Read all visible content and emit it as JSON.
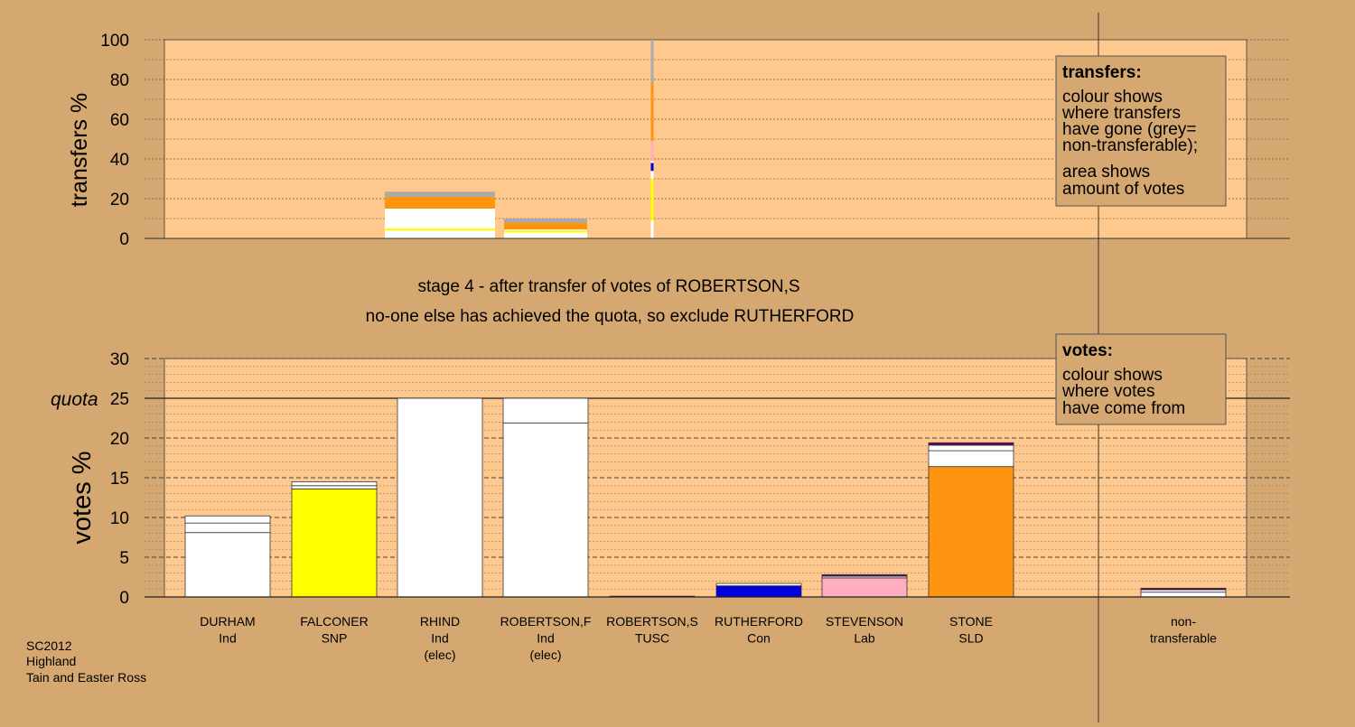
{
  "colors": {
    "background": "#d4a870",
    "plot_bg": "#ffc98e",
    "ind": "#ffffff",
    "snp": "#ffff00",
    "con": "#0000dd",
    "lab": "#ffadc0",
    "sld": "#ff9410",
    "tusc": "#660066",
    "nontransferable": "#aaaaaa"
  },
  "footer": {
    "line1": "SC2012",
    "line2": "Highland",
    "line3": "Tain and Easter Ross"
  },
  "legend_transfers": {
    "title": "transfers:",
    "lines": [
      "colour shows",
      "where transfers",
      "have gone (grey=",
      "non-transferable);",
      "area shows",
      "amount of votes"
    ]
  },
  "legend_votes": {
    "title": "votes:",
    "lines": [
      "colour shows",
      "where votes",
      "have come from"
    ]
  },
  "stage_text": {
    "line1": "stage 4 - after transfer of votes of ROBERTSON,S",
    "line2": "no-one else has achieved the quota, so exclude RUTHERFORD"
  },
  "chart_data": [
    {
      "type": "bar",
      "ylabel": "transfers %",
      "ylim": [
        0,
        100
      ],
      "yticks": [
        0,
        20,
        40,
        60,
        80,
        100
      ],
      "grid": true,
      "categories": [
        "RHIND",
        "ROBERTSON,F",
        "ROBERTSON,S"
      ],
      "bars": [
        {
          "category": "RHIND",
          "segments": [
            {
              "color": "ind",
              "value": 4
            },
            {
              "color": "snp",
              "value": 1
            },
            {
              "color": "ind",
              "value": 10
            },
            {
              "color": "sld",
              "value": 6
            },
            {
              "color": "nontransferable",
              "value": 2.5
            }
          ]
        },
        {
          "category": "ROBERTSON,F",
          "segments": [
            {
              "color": "ind",
              "value": 3
            },
            {
              "color": "snp",
              "value": 1
            },
            {
              "color": "ind",
              "value": 0.5
            },
            {
              "color": "sld",
              "value": 3.5
            },
            {
              "color": "nontransferable",
              "value": 2
            }
          ]
        },
        {
          "category": "ROBERTSON,S",
          "segments": [
            {
              "color": "ind",
              "value": 9
            },
            {
              "color": "snp",
              "value": 21
            },
            {
              "color": "ind",
              "value": 4
            },
            {
              "color": "con",
              "value": 4
            },
            {
              "color": "ind",
              "value": 1
            },
            {
              "color": "lab",
              "value": 10
            },
            {
              "color": "sld",
              "value": 29
            },
            {
              "color": "nontransferable",
              "value": 22
            }
          ]
        }
      ]
    },
    {
      "type": "bar",
      "ylabel": "votes %",
      "ylim": [
        0,
        30
      ],
      "yticks": [
        0,
        5,
        10,
        15,
        20,
        25,
        30
      ],
      "quota": {
        "label": "quota",
        "value": 25
      },
      "grid": true,
      "categories": [
        {
          "name": "DURHAM",
          "party": "Ind",
          "note": ""
        },
        {
          "name": "FALCONER",
          "party": "SNP",
          "note": ""
        },
        {
          "name": "RHIND",
          "party": "Ind",
          "note": "(elec)"
        },
        {
          "name": "ROBERTSON,F",
          "party": "Ind",
          "note": "(elec)"
        },
        {
          "name": "ROBERTSON,S",
          "party": "TUSC",
          "note": ""
        },
        {
          "name": "RUTHERFORD",
          "party": "Con",
          "note": ""
        },
        {
          "name": "STEVENSON",
          "party": "Lab",
          "note": ""
        },
        {
          "name": "STONE",
          "party": "SLD",
          "note": ""
        },
        {
          "name": "non-",
          "party": "transferable",
          "note": ""
        }
      ],
      "bars": [
        {
          "category": "DURHAM",
          "segments": [
            {
              "color": "ind",
              "value": 8.1
            },
            {
              "color": "ind",
              "value": 1.2
            },
            {
              "color": "ind",
              "value": 0.9
            }
          ]
        },
        {
          "category": "FALCONER",
          "segments": [
            {
              "color": "snp",
              "value": 13.6
            },
            {
              "color": "ind",
              "value": 0.4
            },
            {
              "color": "ind",
              "value": 0.5
            }
          ]
        },
        {
          "category": "RHIND",
          "segments": [
            {
              "color": "ind",
              "value": 25
            }
          ]
        },
        {
          "category": "ROBERTSON,F",
          "segments": [
            {
              "color": "ind",
              "value": 21.9
            },
            {
              "color": "ind",
              "value": 3.1
            }
          ]
        },
        {
          "category": "ROBERTSON,S",
          "segments": [
            {
              "color": "tusc",
              "value": 0.1
            }
          ]
        },
        {
          "category": "RUTHERFORD",
          "segments": [
            {
              "color": "con",
              "value": 1.4
            },
            {
              "color": "ind",
              "value": 0.3
            }
          ]
        },
        {
          "category": "STEVENSON",
          "segments": [
            {
              "color": "lab",
              "value": 2.4
            },
            {
              "color": "ind",
              "value": 0.2
            },
            {
              "color": "tusc",
              "value": 0.2
            }
          ]
        },
        {
          "category": "STONE",
          "segments": [
            {
              "color": "sld",
              "value": 16.4
            },
            {
              "color": "ind",
              "value": 2.0
            },
            {
              "color": "ind",
              "value": 0.7
            },
            {
              "color": "tusc",
              "value": 0.3
            }
          ]
        },
        {
          "category": "non-",
          "segments": [
            {
              "color": "ind",
              "value": 0.6
            },
            {
              "color": "ind",
              "value": 0.3
            },
            {
              "color": "tusc",
              "value": 0.2
            }
          ]
        }
      ]
    }
  ]
}
